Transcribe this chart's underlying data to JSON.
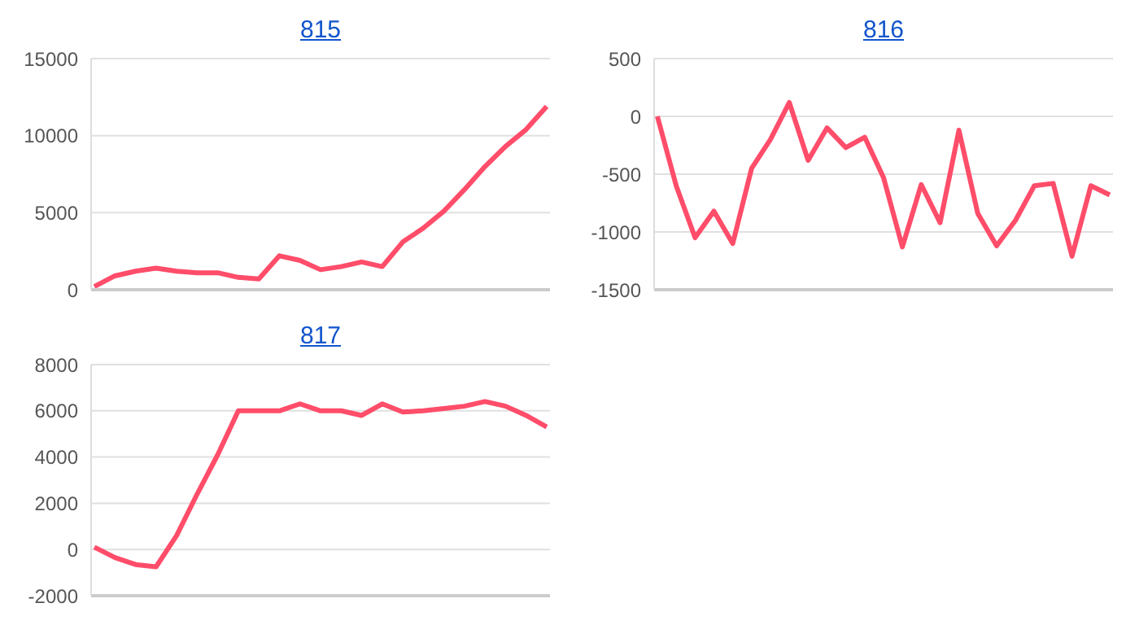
{
  "chart_data": [
    {
      "type": "line",
      "title": "815",
      "categories": [
        null,
        null,
        null,
        null,
        null,
        null,
        null,
        null,
        null,
        null,
        null,
        null,
        null,
        null,
        null,
        null,
        null,
        null,
        null,
        null,
        null,
        null,
        null
      ],
      "series": [
        {
          "color": "#ff4d6a",
          "values": [
            200,
            900,
            1200,
            1400,
            1200,
            1100,
            1100,
            800,
            700,
            2200,
            1900,
            1300,
            1500,
            1800,
            1500,
            3100,
            4000,
            5100,
            6500,
            8000,
            9300,
            10400,
            11900
          ]
        }
      ],
      "ylim": [
        0,
        15000
      ],
      "yticks": [
        0,
        5000,
        10000,
        15000
      ],
      "grid": "y",
      "tick_labels": "y",
      "legend": false,
      "marker": "none",
      "line_style": "solid"
    },
    {
      "type": "line",
      "title": "816",
      "categories": [
        null,
        null,
        null,
        null,
        null,
        null,
        null,
        null,
        null,
        null,
        null,
        null,
        null,
        null,
        null,
        null,
        null,
        null,
        null,
        null,
        null,
        null,
        null,
        null,
        null
      ],
      "series": [
        {
          "color": "#ff4d6a",
          "values": [
            0,
            -600,
            -1050,
            -820,
            -1100,
            -450,
            -200,
            120,
            -380,
            -100,
            -270,
            -180,
            -530,
            -1130,
            -590,
            -920,
            -120,
            -840,
            -1120,
            -900,
            -600,
            -580,
            -1210,
            -600,
            -680
          ]
        }
      ],
      "ylim": [
        -1500,
        500
      ],
      "yticks": [
        -1500,
        -1000,
        -500,
        0,
        500
      ],
      "grid": "y",
      "tick_labels": "y",
      "legend": false,
      "marker": "none",
      "line_style": "solid"
    },
    {
      "type": "line",
      "title": "817",
      "categories": [
        null,
        null,
        null,
        null,
        null,
        null,
        null,
        null,
        null,
        null,
        null,
        null,
        null,
        null,
        null,
        null,
        null,
        null,
        null,
        null,
        null,
        null,
        null
      ],
      "series": [
        {
          "color": "#ff4d6a",
          "values": [
            100,
            -350,
            -650,
            -750,
            600,
            2400,
            4100,
            6000,
            6000,
            6000,
            6300,
            6000,
            6000,
            5800,
            6300,
            5950,
            6000,
            6100,
            6200,
            6400,
            6200,
            5800,
            5300
          ]
        }
      ],
      "ylim": [
        -2000,
        8000
      ],
      "yticks": [
        -2000,
        0,
        2000,
        4000,
        6000,
        8000
      ],
      "grid": "y",
      "tick_labels": "y",
      "legend": false,
      "marker": "none",
      "line_style": "solid"
    }
  ]
}
